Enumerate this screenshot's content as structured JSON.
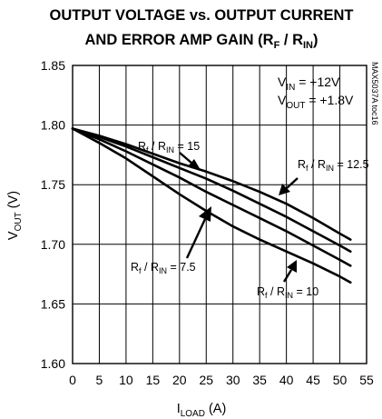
{
  "chart_data": {
    "type": "line",
    "title_line1": "OUTPUT VOLTAGE vs. OUTPUT CURRENT",
    "title_line2_prefix": "AND ERROR AMP GAIN (R",
    "title_line2_sub1": "F",
    "title_line2_mid": " / R",
    "title_line2_sub2": "IN",
    "title_line2_suffix": ")",
    "ylabel_main": "V",
    "ylabel_sub": "OUT",
    "ylabel_unit": " (V)",
    "xlabel_main": "I",
    "xlabel_sub": "LOAD",
    "xlabel_unit": " (A)",
    "xlim": [
      0,
      55
    ],
    "ylim": [
      1.6,
      1.85
    ],
    "x_ticks": [
      0,
      5,
      10,
      15,
      20,
      25,
      30,
      35,
      40,
      45,
      50,
      55
    ],
    "y_ticks": [
      1.6,
      1.65,
      1.7,
      1.75,
      1.8,
      1.85
    ],
    "y_tick_labels": [
      "1.60",
      "1.65",
      "1.70",
      "1.75",
      "1.80",
      "1.85"
    ],
    "grid": true,
    "conditions": [
      {
        "main": "V",
        "sub": "IN",
        "text": " = +12V"
      },
      {
        "main": "V",
        "sub": "OUT",
        "text": " = +1.8V"
      }
    ],
    "side_label": "MAX5037A toc16",
    "series": [
      {
        "name": "Rf / RIN = 15",
        "label": {
          "a": "R",
          "as": "f",
          "b": " / R",
          "bs": "IN",
          "c": " = 15"
        },
        "x": [
          0,
          5,
          10,
          15,
          20,
          25,
          30,
          35,
          40,
          45,
          50,
          52
        ],
        "y": [
          1.797,
          1.791,
          1.784,
          1.776,
          1.768,
          1.761,
          1.753,
          1.744,
          1.734,
          1.722,
          1.709,
          1.704
        ]
      },
      {
        "name": "Rf / RIN = 12.5",
        "label": {
          "a": "R",
          "as": "f",
          "b": " / R",
          "bs": "IN",
          "c": " = 12.5"
        },
        "x": [
          0,
          5,
          10,
          15,
          20,
          25,
          30,
          35,
          40,
          45,
          50,
          52
        ],
        "y": [
          1.797,
          1.79,
          1.782,
          1.773,
          1.764,
          1.755,
          1.745,
          1.734,
          1.723,
          1.711,
          1.699,
          1.694
        ]
      },
      {
        "name": "Rf / RIN = 10",
        "label": {
          "a": "R",
          "as": "f",
          "b": " / R",
          "bs": "IN",
          "c": " = 10"
        },
        "x": [
          0,
          5,
          10,
          15,
          20,
          25,
          30,
          35,
          40,
          45,
          50,
          52
        ],
        "y": [
          1.797,
          1.788,
          1.778,
          1.767,
          1.756,
          1.744,
          1.733,
          1.722,
          1.711,
          1.699,
          1.687,
          1.682
        ]
      },
      {
        "name": "Rf / RIN = 7.5",
        "label": {
          "a": "R",
          "as": "f",
          "b": " / R",
          "bs": "IN",
          "c": " = 7.5"
        },
        "x": [
          0,
          5,
          10,
          15,
          20,
          25,
          30,
          35,
          40,
          45,
          50,
          52
        ],
        "y": [
          1.797,
          1.785,
          1.772,
          1.757,
          1.742,
          1.728,
          1.715,
          1.704,
          1.694,
          1.684,
          1.673,
          1.668
        ]
      }
    ]
  }
}
